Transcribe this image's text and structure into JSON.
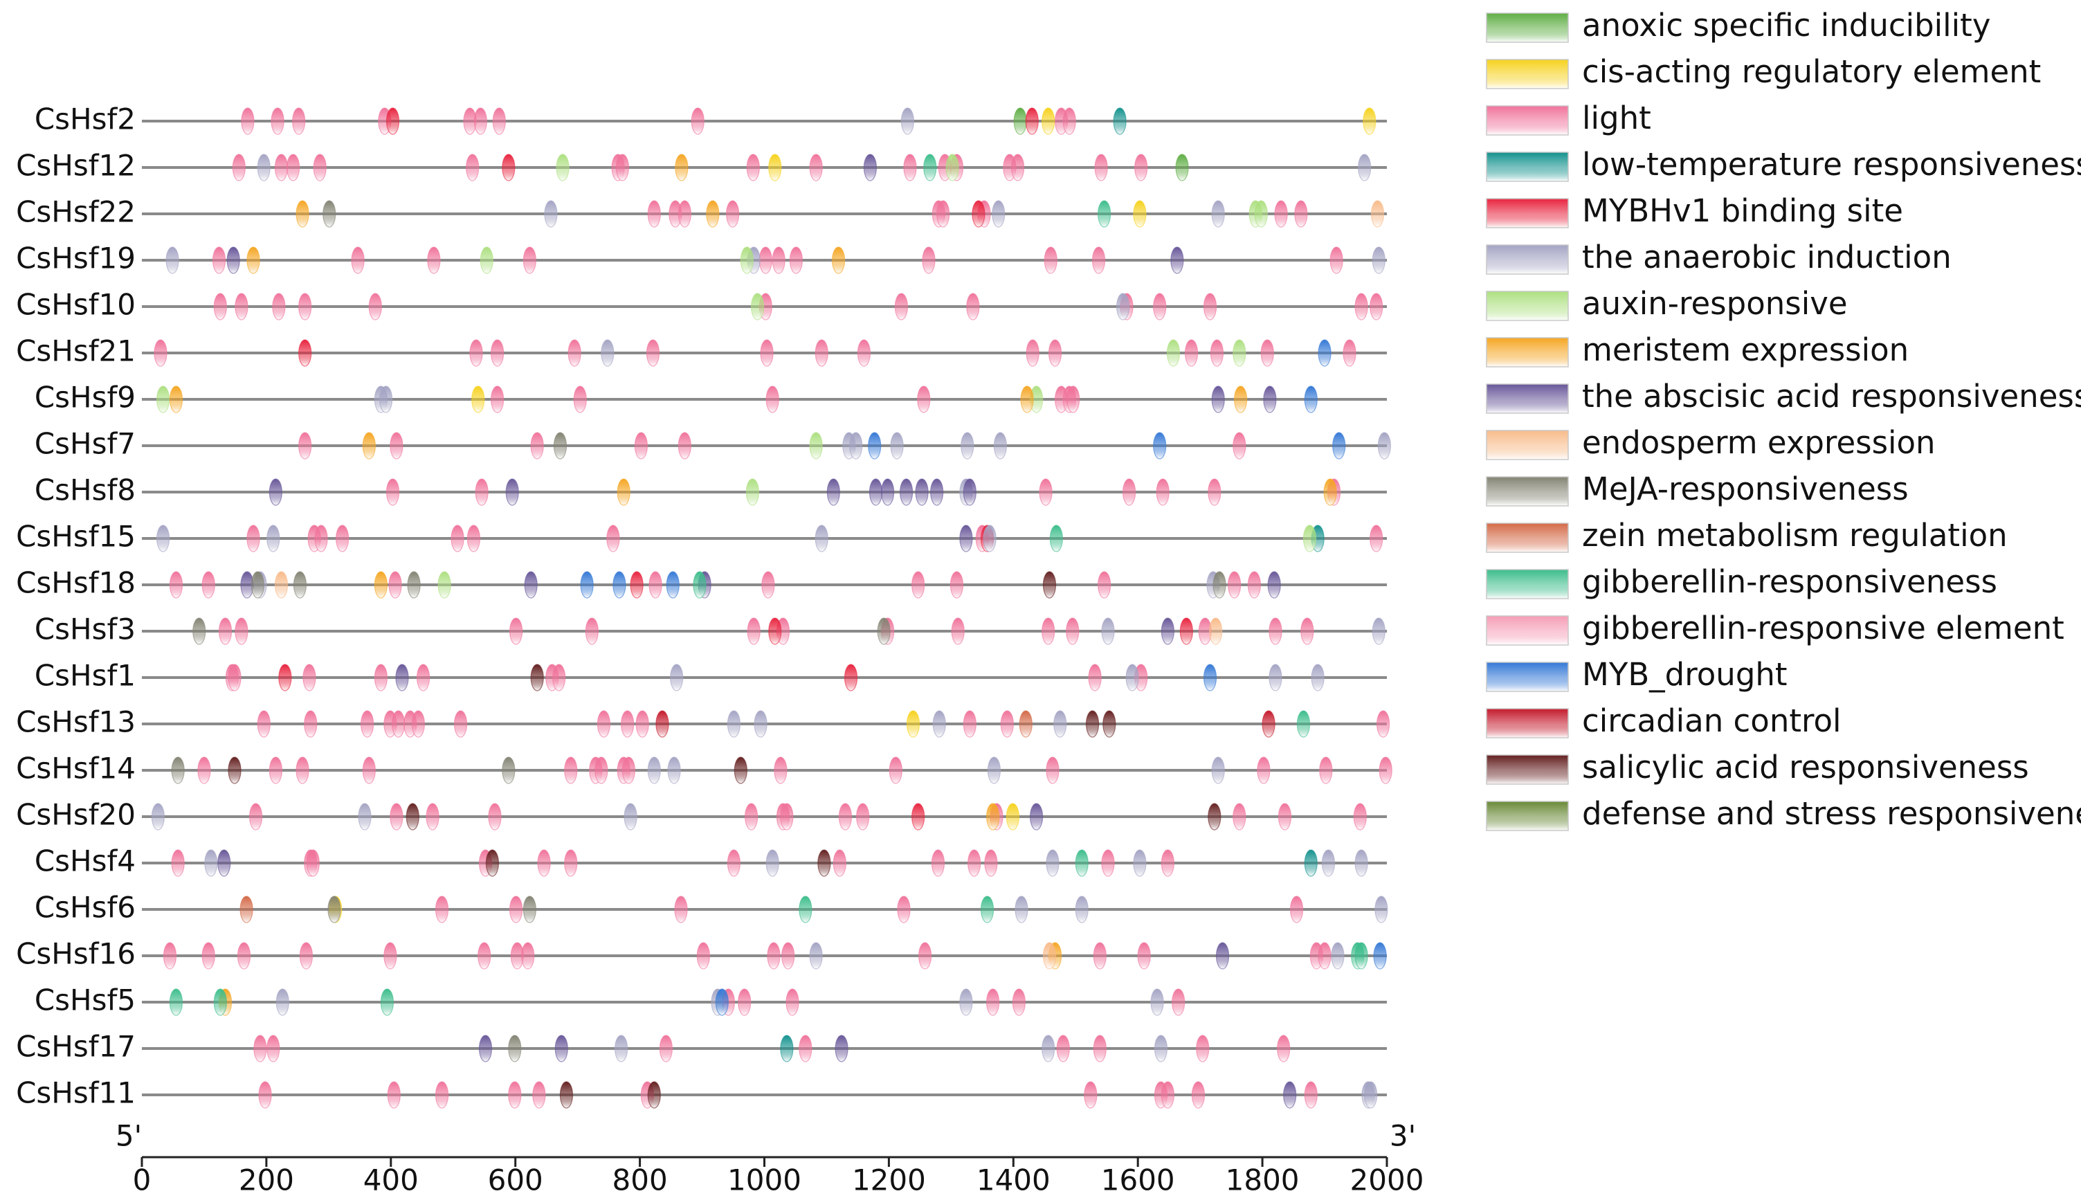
{
  "chart_data": {
    "type": "motif-map",
    "start_label": "5'",
    "end_label": "3'",
    "xlim": [
      0,
      2000
    ],
    "xticks": [
      0,
      200,
      400,
      600,
      800,
      1000,
      1200,
      1400,
      1600,
      1800,
      2000
    ],
    "genes": [
      "CsHsf2",
      "CsHsf12",
      "CsHsf22",
      "CsHsf19",
      "CsHsf10",
      "CsHsf21",
      "CsHsf9",
      "CsHsf7",
      "CsHsf8",
      "CsHsf15",
      "CsHsf18",
      "CsHsf3",
      "CsHsf1",
      "CsHsf13",
      "CsHsf14",
      "CsHsf20",
      "CsHsf4",
      "CsHsf6",
      "CsHsf16",
      "CsHsf5",
      "CsHsf17",
      "CsHsf11"
    ],
    "series": [
      {
        "name": "anoxic specific inducibility",
        "color": "#5fae45",
        "positions": [
          [
            1411
          ],
          [
            1671
          ],
          [],
          [],
          [],
          [],
          [],
          [],
          [],
          [],
          [],
          [],
          [],
          [],
          [],
          [],
          [],
          [],
          [],
          [],
          [],
          []
        ]
      },
      {
        "name": "cis-acting regulatory element",
        "color": "#f6d21e",
        "positions": [
          [
            1456,
            1972
          ],
          [
            1017
          ],
          [
            1603
          ],
          [],
          [],
          [],
          [
            540
          ],
          [],
          [],
          [],
          [],
          [],
          [],
          [
            1239
          ],
          [],
          [
            1399
          ],
          [],
          [
            311
          ],
          [],
          [],
          [],
          []
        ]
      },
      {
        "name": "light",
        "color": "#f0739b",
        "positions": [
          [
            170,
            218,
            252,
            390,
            527,
            544,
            574,
            893,
            1477,
            1490
          ],
          [
            156,
            224,
            243,
            286,
            531,
            765,
            772,
            982,
            1083,
            1234,
            1290,
            1309,
            1394,
            1407,
            1541,
            1605
          ],
          [
            823,
            857,
            872,
            949,
            1280,
            1287,
            1353,
            1830,
            1862
          ],
          [
            124,
            347,
            469,
            623,
            1002,
            1023,
            1051,
            1264,
            1460,
            1537,
            1919
          ],
          [
            126,
            160,
            220,
            262,
            375,
            1002,
            1220,
            1335,
            1582,
            1635,
            1716,
            1959,
            1983
          ],
          [
            30,
            537,
            571,
            695,
            821,
            1004,
            1092,
            1160,
            1431,
            1467,
            1686,
            1727,
            1808,
            1940
          ],
          [
            571,
            704,
            1013,
            1256,
            1477,
            1490,
            1496
          ],
          [
            262,
            409,
            635,
            802,
            872,
            1763
          ],
          [
            403,
            546,
            1452,
            1586,
            1640,
            1723,
            1915
          ],
          [
            179,
            277,
            288,
            322,
            507,
            533,
            757,
            1350,
            1983
          ],
          [
            55,
            107,
            407,
            825,
            1006,
            1247,
            1309,
            1546,
            1755,
            1787
          ],
          [
            134,
            160,
            601,
            723,
            983,
            1030,
            1198,
            1311,
            1456,
            1495,
            1708,
            1821,
            1872
          ],
          [
            145,
            149,
            269,
            384,
            452,
            659,
            670,
            1531,
            1605
          ],
          [
            196,
            271,
            362,
            399,
            412,
            431,
            444,
            512,
            742,
            780,
            804,
            1330,
            1390,
            1994
          ],
          [
            100,
            215,
            258,
            365,
            689,
            729,
            738,
            774,
            782,
            1026,
            1211,
            1463,
            1802,
            1902,
            1998
          ],
          [
            183,
            409,
            467,
            567,
            979,
            1030,
            1036,
            1130,
            1158,
            1373,
            1763,
            1836,
            1957
          ],
          [
            58,
            271,
            275,
            552,
            646,
            689,
            951,
            1121,
            1279,
            1337,
            1364,
            1552,
            1648
          ],
          [
            482,
            601,
            866,
            1224,
            1855
          ],
          [
            45,
            107,
            164,
            264,
            399,
            550,
            603,
            620,
            902,
            1015,
            1038,
            1258,
            1539,
            1610,
            1887,
            1900
          ],
          [
            942,
            968,
            1045,
            1367,
            1409,
            1665
          ],
          [
            190,
            211,
            842,
            1066,
            1480,
            1539,
            1704,
            1834
          ],
          [
            198,
            405,
            482,
            599,
            638,
            812,
            1524,
            1637,
            1648,
            1697,
            1878
          ]
        ]
      },
      {
        "name": "low-temperature responsiveness",
        "color": "#15938f",
        "positions": [
          [
            1571
          ],
          [],
          [],
          [],
          [],
          [],
          [],
          [],
          [],
          [
            1889
          ],
          [],
          [],
          [],
          [],
          [],
          [],
          [
            1878
          ],
          [],
          [],
          [],
          [
            1036
          ],
          []
        ]
      },
      {
        "name": "MYBHv1 binding site",
        "color": "#e8243f",
        "positions": [
          [
            403,
            1430
          ],
          [
            589
          ],
          [
            1344
          ],
          [],
          [],
          [
            262
          ],
          [],
          [],
          [],
          [
            1358
          ],
          [
            795
          ],
          [
            1017,
            1678
          ],
          [
            230,
            1139
          ],
          [],
          [],
          [
            1247
          ],
          [],
          [],
          [],
          [],
          [],
          []
        ]
      },
      {
        "name": "the anaerobic induction",
        "color": "#a4a4c4",
        "positions": [
          [
            1230
          ],
          [
            196,
            1964
          ],
          [
            657,
            1376,
            1729
          ],
          [
            49,
            983,
            1987
          ],
          [
            1576
          ],
          [
            748
          ],
          [
            384,
            392
          ],
          [
            1136,
            1147,
            1213,
            1326,
            1379,
            1996
          ],
          [
            1324
          ],
          [
            34,
            211,
            1092,
            1362
          ],
          [
            190,
            1721
          ],
          [
            1552,
            1987
          ],
          [
            859,
            1591,
            1821,
            1889
          ],
          [
            951,
            994,
            1281,
            1475
          ],
          [
            823,
            855,
            1369,
            1729
          ],
          [
            26,
            358,
            785
          ],
          [
            111,
            1013,
            1463,
            1603,
            1906,
            1959
          ],
          [
            1413,
            1510,
            1991
          ],
          [
            1083,
            1921
          ],
          [
            226,
            925,
            1324,
            1631
          ],
          [
            770,
            1456,
            1637
          ],
          [
            1970,
            1974
          ]
        ]
      },
      {
        "name": "auxin-responsive",
        "color": "#ade081",
        "positions": [
          [],
          [
            676,
            1302
          ],
          [
            1789,
            1798
          ],
          [
            554,
            972
          ],
          [
            989
          ],
          [
            1657,
            1763
          ],
          [
            34,
            1437
          ],
          [
            1083
          ],
          [
            981
          ],
          [
            1876
          ],
          [
            486
          ],
          [],
          [],
          [],
          [],
          [],
          [],
          [],
          [],
          [],
          [],
          []
        ]
      },
      {
        "name": "meristem expression",
        "color": "#f5a623",
        "positions": [
          [],
          [
            867
          ],
          [
            258,
            917
          ],
          [
            179,
            1119
          ],
          [],
          [],
          [
            55,
            1422,
            1765
          ],
          [
            365
          ],
          [
            774,
            1909
          ],
          [],
          [
            384
          ],
          [],
          [],
          [],
          [],
          [
            1367
          ],
          [],
          [],
          [
            1467
          ],
          [
            134
          ],
          [],
          []
        ]
      },
      {
        "name": "the abscisic acid responsiveness",
        "color": "#685799",
        "positions": [
          [],
          [
            1170
          ],
          [],
          [
            147,
            1663
          ],
          [],
          [],
          [
            1729,
            1812
          ],
          [],
          [
            215,
            595,
            1111,
            1179,
            1198,
            1228,
            1253,
            1277,
            1330
          ],
          [
            1324
          ],
          [
            169,
            625,
            904,
            1819
          ],
          [
            1648
          ],
          [
            418
          ],
          [],
          [],
          [
            1437
          ],
          [
            132
          ],
          [],
          [
            1736
          ],
          [],
          [
            552,
            674,
            1124
          ],
          [
            1844
          ]
        ]
      },
      {
        "name": "endosperm expression",
        "color": "#f8bb8a",
        "positions": [
          [],
          [],
          [
            1985
          ],
          [],
          [],
          [],
          [],
          [],
          [],
          [],
          [
            224
          ],
          [
            1725
          ],
          [],
          [],
          [],
          [],
          [],
          [],
          [
            1458
          ],
          [],
          [],
          []
        ]
      },
      {
        "name": "MeJA-responsiveness",
        "color": "#848474",
        "positions": [
          [],
          [],
          [
            301
          ],
          [],
          [],
          [],
          [],
          [
            672
          ],
          [],
          [],
          [
            186,
            254,
            437,
            1731
          ],
          [
            92,
            1192
          ],
          [],
          [],
          [
            58,
            589
          ],
          [],
          [],
          [
            309,
            623
          ],
          [],
          [],
          [
            599
          ],
          []
        ]
      },
      {
        "name": "zein metabolism regulation",
        "color": "#d46a48",
        "positions": [
          [],
          [],
          [],
          [],
          [],
          [],
          [],
          [],
          [],
          [],
          [],
          [],
          [],
          [
            1420
          ],
          [],
          [],
          [],
          [
            168
          ],
          [],
          [],
          [],
          []
        ]
      },
      {
        "name": "gibberellin-responsiveness",
        "color": "#3dbd8c",
        "positions": [
          [],
          [
            1266
          ],
          [
            1546
          ],
          [],
          [],
          [],
          [],
          [],
          [],
          [
            1469
          ],
          [
            896
          ],
          [],
          [],
          [
            1866
          ],
          [],
          [],
          [
            1510
          ],
          [
            1066,
            1358
          ],
          [
            1953,
            1959
          ],
          [
            55,
            126,
            394
          ],
          [],
          []
        ]
      },
      {
        "name": "gibberellin-responsive element",
        "color": "#f59db6",
        "positions": [
          [],
          [],
          [],
          [],
          [],
          [],
          [],
          [],
          [],
          [],
          [],
          [],
          [],
          [],
          [],
          [],
          [],
          [],
          [],
          [],
          [],
          []
        ]
      },
      {
        "name": "MYB_drought",
        "color": "#3579d6",
        "positions": [
          [],
          [],
          [],
          [],
          [],
          [
            1900
          ],
          [
            1878
          ],
          [
            1177,
            1635,
            1923
          ],
          [],
          [],
          [
            715,
            767,
            853
          ],
          [],
          [
            1716
          ],
          [],
          [],
          [],
          [],
          [],
          [
            1989
          ],
          [
            932
          ],
          [],
          []
        ]
      },
      {
        "name": "circadian control",
        "color": "#c41a2c",
        "positions": [
          [],
          [],
          [],
          [],
          [],
          [],
          [],
          [],
          [],
          [],
          [],
          [],
          [],
          [
            836,
            1810
          ],
          [],
          [],
          [],
          [],
          [],
          [],
          [],
          []
        ]
      },
      {
        "name": "salicylic acid responsiveness",
        "color": "#652020",
        "positions": [
          [],
          [],
          [],
          [],
          [],
          [],
          [],
          [],
          [],
          [],
          [
            1458
          ],
          [],
          [
            635
          ],
          [
            1527,
            1554
          ],
          [
            149,
            962
          ],
          [
            435,
            1723
          ],
          [
            563,
            1096
          ],
          [],
          [],
          [],
          [],
          [
            682,
            823
          ]
        ]
      },
      {
        "name": "defense and stress responsiveness",
        "color": "#6a8a38",
        "positions": [
          [],
          [],
          [],
          [],
          [],
          [],
          [],
          [],
          [],
          [],
          [],
          [],
          [],
          [],
          [],
          [],
          [],
          [],
          [],
          [],
          [],
          []
        ]
      }
    ]
  }
}
